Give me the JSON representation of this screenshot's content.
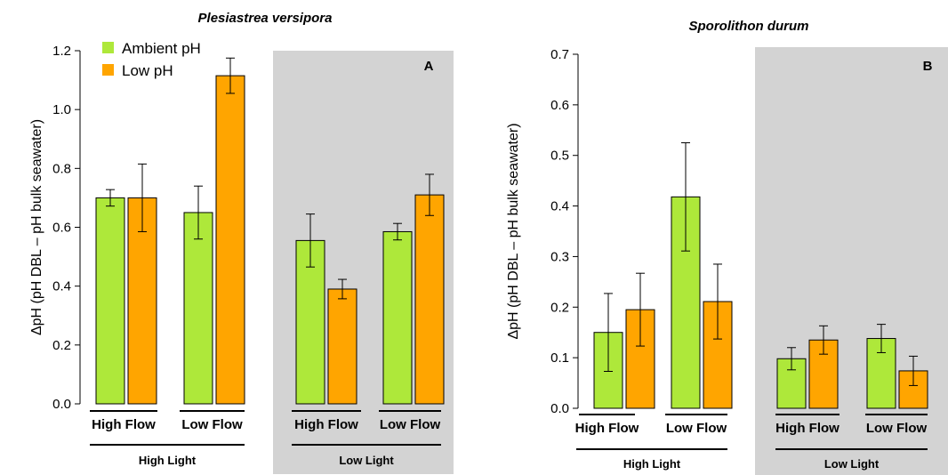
{
  "colors": {
    "ambient": "#aee83a",
    "low": "#ffa500",
    "shade": "#d3d3d3"
  },
  "legend": {
    "ambient": "Ambient pH",
    "low": "Low pH"
  },
  "chart_data": [
    {
      "type": "bar",
      "title": "Plesiastrea versipora",
      "panel": "A",
      "ylabel": "ΔpH (pH DBL – pH bulk seawater)",
      "ylim": [
        0,
        1.2
      ],
      "yticks": [
        "0.0",
        "0.2",
        "0.4",
        "0.6",
        "0.8",
        "1.0",
        "1.2"
      ],
      "light_groups": [
        "High Light",
        "Low Light"
      ],
      "flow_groups": [
        "High Flow",
        "Low Flow",
        "High Flow",
        "Low Flow"
      ],
      "series": [
        {
          "name": "Ambient pH",
          "values": [
            0.7,
            0.65,
            0.555,
            0.585
          ],
          "errors": [
            0.028,
            0.09,
            0.09,
            0.028
          ]
        },
        {
          "name": "Low pH",
          "values": [
            0.7,
            1.115,
            0.39,
            0.71
          ],
          "errors": [
            0.115,
            0.06,
            0.033,
            0.07
          ]
        }
      ]
    },
    {
      "type": "bar",
      "title": "Sporolithon durum",
      "panel": "B",
      "ylabel": "ΔpH (pH DBL – pH bulk seawater)",
      "ylim": [
        0,
        0.7
      ],
      "yticks": [
        "0.0",
        "0.1",
        "0.2",
        "0.3",
        "0.4",
        "0.5",
        "0.6",
        "0.7"
      ],
      "light_groups": [
        "High Light",
        "Low Light"
      ],
      "flow_groups": [
        "High Flow",
        "Low Flow",
        "High Flow",
        "Low Flow"
      ],
      "series": [
        {
          "name": "Ambient pH",
          "values": [
            0.15,
            0.418,
            0.098,
            0.138
          ],
          "errors": [
            0.077,
            0.107,
            0.022,
            0.028
          ]
        },
        {
          "name": "Low pH",
          "values": [
            0.195,
            0.211,
            0.135,
            0.074
          ],
          "errors": [
            0.072,
            0.074,
            0.028,
            0.029
          ]
        }
      ]
    }
  ]
}
